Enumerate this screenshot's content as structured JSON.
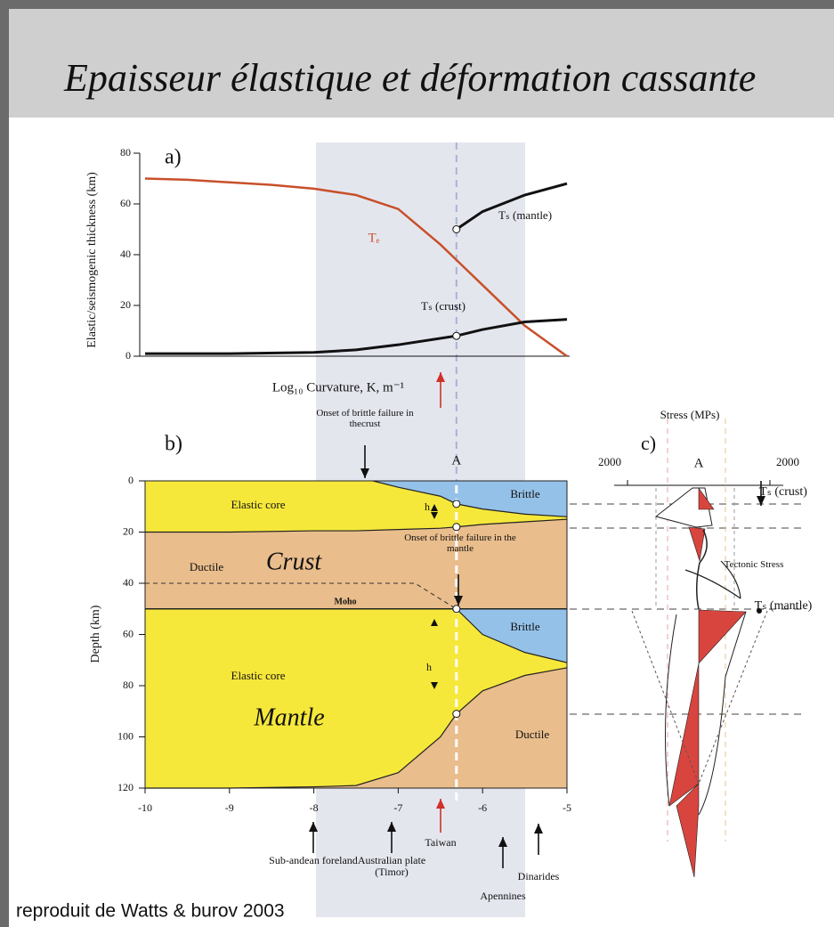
{
  "title": "Epaisseur élastique et déformation cassante",
  "footer": "reproduit de Watts & burov 2003",
  "chart_data": [
    {
      "type": "line",
      "panel_label": "a)",
      "ylabel": "Elastic/seismogenic thickness (km)",
      "xlabel": "Log₁₀ Curvature, K, m⁻¹",
      "xlim": [
        -10,
        -5
      ],
      "ylim": [
        0,
        80
      ],
      "yticks": [
        0,
        20,
        40,
        60,
        80
      ],
      "ref_x": -6.31,
      "series": [
        {
          "name": "Tₑ",
          "color": "#c8502a",
          "x": [
            -10,
            -9.5,
            -9,
            -8.5,
            -8,
            -7.5,
            -7,
            -6.5,
            -6,
            -5.5,
            -5
          ],
          "values": [
            70,
            69.5,
            68.5,
            67.5,
            66,
            63.5,
            58,
            44,
            28,
            12,
            0
          ]
        },
        {
          "name": "Tₛ (crust)",
          "color": "#111111",
          "x": [
            -10,
            -9,
            -8,
            -7.5,
            -7,
            -6.31,
            -6,
            -5.5,
            -5
          ],
          "values": [
            1,
            1,
            1.5,
            2.5,
            4.5,
            8,
            10.5,
            13.5,
            14.5
          ]
        },
        {
          "name": "Tₛ (mantle)",
          "color": "#111111",
          "x": [
            -6.31,
            -6,
            -5.5,
            -5
          ],
          "values": [
            50,
            57,
            63.5,
            68
          ]
        }
      ]
    },
    {
      "type": "section",
      "panel_label": "b)",
      "ylabel": "Depth (km)",
      "marker_label": "A",
      "xlim": [
        -10,
        -5
      ],
      "xticks": [
        -10,
        -9,
        -8,
        -7,
        -6,
        -5
      ],
      "ylim": [
        0,
        120
      ],
      "yticks": [
        0,
        20,
        40,
        60,
        80,
        100,
        120
      ],
      "ref_x": -6.31,
      "layers": [
        {
          "color": "#e9bd8c",
          "x": [
            -10,
            -5
          ],
          "top": [
            0,
            0
          ],
          "bottom": [
            120,
            120
          ]
        },
        {
          "color": "#f6e83a",
          "x": [
            -10,
            -9,
            -8,
            -7.5,
            -7,
            -6.5,
            -6.31,
            -6,
            -5.5,
            -5
          ],
          "top": [
            0,
            0,
            0,
            0,
            0,
            0,
            0,
            0,
            0,
            0
          ],
          "bottom": [
            20,
            20,
            19.5,
            19.5,
            19,
            18.5,
            18,
            17,
            16,
            15
          ]
        },
        {
          "color": "#94c1e8",
          "x": [
            -7.3,
            -7,
            -6.5,
            -6.31,
            -6,
            -5.5,
            -5
          ],
          "top": [
            0,
            0,
            0,
            0,
            0,
            0,
            0
          ],
          "bottom": [
            0,
            2.5,
            6,
            9,
            11,
            13,
            14
          ]
        },
        {
          "color": "#f6e83a",
          "x": [
            -10,
            -9,
            -8,
            -7.5,
            -7,
            -6.5,
            -6.31,
            -6,
            -5.5,
            -5
          ],
          "top": [
            50,
            50,
            50,
            50,
            50,
            50,
            50,
            50,
            50,
            50
          ],
          "bottom": [
            120,
            120,
            119.5,
            119,
            114,
            100,
            91,
            82,
            76,
            73
          ]
        },
        {
          "color": "#94c1e8",
          "x": [
            -6.31,
            -6,
            -5.5,
            -5
          ],
          "top": [
            50,
            50,
            50,
            50
          ],
          "bottom": [
            50,
            60,
            67,
            71
          ]
        }
      ],
      "region_labels": [
        "Elastic core",
        "Crust",
        "Ductile",
        "Brittle",
        "Moho",
        "h",
        "Onset of brittle failure in the mantle",
        "Elastic core",
        "Mantle",
        "Ductile",
        "Brittle",
        "h",
        "Onset of brittle failure in thecrust"
      ],
      "locations": [
        "Sub-andean foreland",
        "Australian plate (Timor)",
        "Taiwan",
        "Dinarides",
        "Apennines"
      ]
    },
    {
      "type": "profile",
      "panel_label": "c)",
      "xlabel": "Stress (MPs)",
      "center_label": "A",
      "xlim": [
        -2000,
        2000
      ],
      "xticks": [
        {
          "value": -2000,
          "label": "2000"
        },
        2000
      ],
      "labels": [
        "Tₛ (crust)",
        "Tectonic Stress",
        "Tₛ (mantle)"
      ]
    }
  ]
}
